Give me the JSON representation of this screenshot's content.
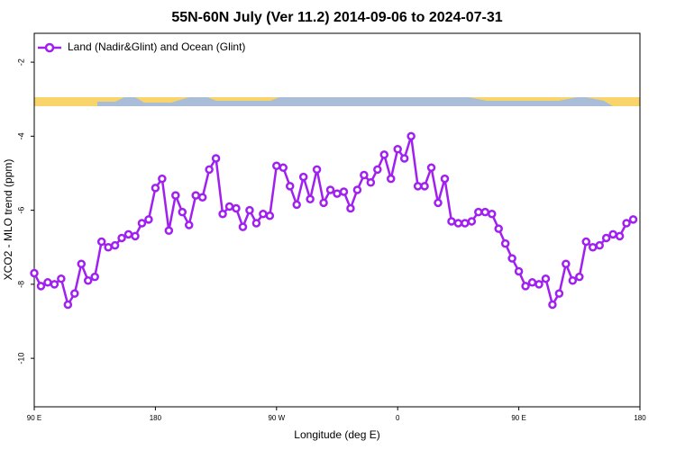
{
  "chart_data": {
    "type": "line",
    "title": "55N-60N July (Ver 11.2)   2014-09-06 to 2024-07-31",
    "xlabel": "Longitude (deg E)",
    "ylabel": "XCO2 - MLO trend (ppm)",
    "xlim": [
      90,
      540
    ],
    "xticks": [
      {
        "value": 90,
        "label": "90 E"
      },
      {
        "value": 180,
        "label": "180"
      },
      {
        "value": 270,
        "label": "90 W"
      },
      {
        "value": 360,
        "label": "0"
      },
      {
        "value": 450,
        "label": "90 E"
      },
      {
        "value": 540,
        "label": "180"
      }
    ],
    "ylim": [
      -11.31,
      -1.22
    ],
    "yticks": [
      -2,
      -4,
      -6,
      -8,
      -10
    ],
    "legend": "top-left",
    "x": [
      90,
      95,
      100,
      105,
      110,
      115,
      120,
      125,
      130,
      135,
      140,
      145,
      150,
      155,
      160,
      165,
      170,
      175,
      180,
      185,
      190,
      195,
      200,
      205,
      210,
      215,
      220,
      225,
      230,
      235,
      240,
      245,
      250,
      255,
      260,
      265,
      270,
      275,
      280,
      285,
      290,
      295,
      300,
      305,
      310,
      315,
      320,
      325,
      330,
      335,
      340,
      345,
      350,
      355,
      360,
      365,
      370,
      375,
      380,
      385,
      390,
      395,
      400,
      405,
      410,
      415,
      420,
      425,
      430,
      435,
      440,
      445,
      450,
      455,
      460,
      465,
      470,
      475,
      480,
      485,
      490,
      495,
      500,
      505,
      510,
      515,
      520,
      525,
      530,
      535
    ],
    "series": [
      {
        "name": "Land (Nadir&Glint) and Ocean (Glint)",
        "color": "#a020f0",
        "values": [
          -7.7,
          -8.05,
          -7.95,
          -8.0,
          -7.85,
          -8.55,
          -8.25,
          -7.45,
          -7.9,
          -7.8,
          -6.85,
          -7.0,
          -6.95,
          -6.75,
          -6.65,
          -6.7,
          -6.35,
          -6.25,
          -5.4,
          -5.15,
          -6.55,
          -5.6,
          -6.05,
          -6.4,
          -5.6,
          -5.65,
          -4.9,
          -4.6,
          -6.1,
          -5.9,
          -5.95,
          -6.45,
          -6.0,
          -6.35,
          -6.1,
          -6.15,
          -4.8,
          -4.85,
          -5.35,
          -5.85,
          -5.1,
          -5.7,
          -4.9,
          -5.8,
          -5.45,
          -5.55,
          -5.5,
          -5.95,
          -5.45,
          -5.05,
          -5.25,
          -4.9,
          -4.5,
          -5.15,
          -4.35,
          -4.6,
          -4.0,
          -5.35,
          -5.35,
          -4.85,
          -5.8,
          -5.15,
          -6.3,
          -6.35,
          -6.35,
          -6.3,
          -6.05,
          -6.05,
          -6.1,
          -6.5,
          -6.9,
          -7.3,
          -7.65,
          -8.05,
          -7.95,
          -8.0,
          -7.85,
          -8.55,
          -8.25,
          -7.45,
          -7.9,
          -7.8,
          -6.85,
          -7.0,
          -6.95,
          -6.75,
          -6.65,
          -6.7,
          -6.35,
          -6.25
        ]
      }
    ]
  }
}
